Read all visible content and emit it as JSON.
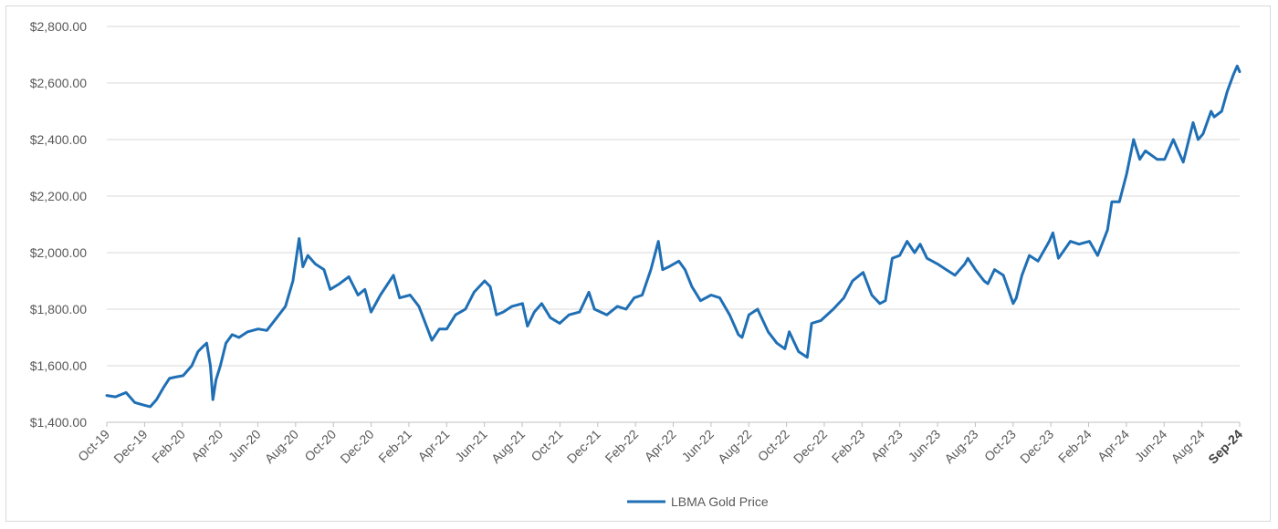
{
  "chart_data": {
    "type": "line",
    "title": "",
    "xlabel": "",
    "ylabel": "",
    "ylim": [
      1400,
      2800
    ],
    "y_ticks": [
      1400,
      1600,
      1800,
      2000,
      2200,
      2400,
      2600,
      2800
    ],
    "y_tick_labels": [
      "$1,400.00",
      "$1,600.00",
      "$1,800.00",
      "$2,000.00",
      "$2,200.00",
      "$2,400.00",
      "$2,600.00",
      "$2,800.00"
    ],
    "x_tick_labels": [
      "Oct-19",
      "Dec-19",
      "Feb-20",
      "Apr-20",
      "Jun-20",
      "Aug-20",
      "Oct-20",
      "Dec-20",
      "Feb-21",
      "Apr-21",
      "Jun-21",
      "Aug-21",
      "Oct-21",
      "Dec-21",
      "Feb-22",
      "Apr-22",
      "Jun-22",
      "Aug-22",
      "Oct-22",
      "Dec-22",
      "Feb-23",
      "Apr-23",
      "Jun-23",
      "Aug-23",
      "Oct-23",
      "Dec-23",
      "Feb-24",
      "Apr-24",
      "Jun-24",
      "Aug-24",
      "Sep-24"
    ],
    "grid": "horizontal",
    "legend_position": "bottom-center",
    "line_color": "#1f6fb5",
    "series": [
      {
        "name": "LBMA Gold Price",
        "x": [
          "2019-10-01",
          "2019-10-15",
          "2019-11-01",
          "2019-11-15",
          "2019-12-01",
          "2019-12-10",
          "2019-12-20",
          "2020-01-01",
          "2020-01-10",
          "2020-01-20",
          "2020-02-01",
          "2020-02-15",
          "2020-02-25",
          "2020-03-05",
          "2020-03-10",
          "2020-03-16",
          "2020-03-20",
          "2020-03-25",
          "2020-04-01",
          "2020-04-10",
          "2020-04-20",
          "2020-05-01",
          "2020-05-15",
          "2020-06-01",
          "2020-06-15",
          "2020-07-01",
          "2020-07-15",
          "2020-07-27",
          "2020-08-06",
          "2020-08-12",
          "2020-08-20",
          "2020-09-01",
          "2020-09-15",
          "2020-09-25",
          "2020-10-10",
          "2020-10-25",
          "2020-11-09",
          "2020-11-20",
          "2020-11-30",
          "2020-12-15",
          "2021-01-05",
          "2021-01-15",
          "2021-02-01",
          "2021-02-15",
          "2021-03-01",
          "2021-03-08",
          "2021-03-20",
          "2021-04-01",
          "2021-04-15",
          "2021-05-01",
          "2021-05-15",
          "2021-06-01",
          "2021-06-10",
          "2021-06-20",
          "2021-07-01",
          "2021-07-15",
          "2021-08-01",
          "2021-08-09",
          "2021-08-20",
          "2021-09-01",
          "2021-09-15",
          "2021-09-30",
          "2021-10-15",
          "2021-11-01",
          "2021-11-16",
          "2021-11-25",
          "2021-12-15",
          "2022-01-01",
          "2022-01-15",
          "2022-01-28",
          "2022-02-10",
          "2022-02-24",
          "2022-03-08",
          "2022-03-15",
          "2022-03-25",
          "2022-04-10",
          "2022-04-20",
          "2022-05-01",
          "2022-05-15",
          "2022-06-01",
          "2022-06-15",
          "2022-07-01",
          "2022-07-15",
          "2022-07-21",
          "2022-08-01",
          "2022-08-15",
          "2022-09-01",
          "2022-09-15",
          "2022-09-28",
          "2022-10-05",
          "2022-10-20",
          "2022-11-03",
          "2022-11-10",
          "2022-11-25",
          "2022-12-15",
          "2023-01-01",
          "2023-01-15",
          "2023-02-01",
          "2023-02-15",
          "2023-02-28",
          "2023-03-09",
          "2023-03-20",
          "2023-04-01",
          "2023-04-13",
          "2023-04-25",
          "2023-05-04",
          "2023-05-15",
          "2023-06-01",
          "2023-06-15",
          "2023-06-29",
          "2023-07-15",
          "2023-07-20",
          "2023-08-01",
          "2023-08-15",
          "2023-08-21",
          "2023-09-01",
          "2023-09-15",
          "2023-10-01",
          "2023-10-06",
          "2023-10-15",
          "2023-10-27",
          "2023-11-10",
          "2023-11-28",
          "2023-12-04",
          "2023-12-13",
          "2024-01-01",
          "2024-01-15",
          "2024-02-01",
          "2024-02-14",
          "2024-03-01",
          "2024-03-08",
          "2024-03-20",
          "2024-04-01",
          "2024-04-12",
          "2024-04-22",
          "2024-05-01",
          "2024-05-20",
          "2024-06-01",
          "2024-06-15",
          "2024-07-01",
          "2024-07-17",
          "2024-07-25",
          "2024-08-02",
          "2024-08-15",
          "2024-08-20",
          "2024-09-01",
          "2024-09-10",
          "2024-09-20",
          "2024-09-26",
          "2024-09-30"
        ],
        "y": [
          1495,
          1490,
          1505,
          1470,
          1460,
          1455,
          1480,
          1525,
          1555,
          1560,
          1565,
          1600,
          1650,
          1670,
          1680,
          1600,
          1480,
          1550,
          1600,
          1680,
          1710,
          1700,
          1720,
          1730,
          1725,
          1770,
          1810,
          1900,
          2050,
          1950,
          1990,
          1960,
          1940,
          1870,
          1890,
          1915,
          1850,
          1870,
          1790,
          1850,
          1920,
          1840,
          1850,
          1810,
          1730,
          1690,
          1730,
          1730,
          1780,
          1800,
          1860,
          1900,
          1880,
          1780,
          1790,
          1810,
          1820,
          1740,
          1790,
          1820,
          1770,
          1750,
          1780,
          1790,
          1860,
          1800,
          1780,
          1810,
          1800,
          1840,
          1850,
          1940,
          2040,
          1940,
          1950,
          1970,
          1940,
          1880,
          1830,
          1850,
          1840,
          1780,
          1710,
          1700,
          1780,
          1800,
          1720,
          1680,
          1660,
          1720,
          1650,
          1630,
          1750,
          1760,
          1800,
          1840,
          1900,
          1930,
          1850,
          1820,
          1830,
          1980,
          1990,
          2040,
          2000,
          2030,
          1980,
          1960,
          1940,
          1920,
          1960,
          1980,
          1940,
          1900,
          1890,
          1940,
          1920,
          1820,
          1840,
          1920,
          1990,
          1970,
          2040,
          2070,
          1980,
          2040,
          2030,
          2040,
          1990,
          2080,
          2180,
          2180,
          2280,
          2400,
          2330,
          2360,
          2330,
          2330,
          2400,
          2320,
          2460,
          2400,
          2420,
          2500,
          2480,
          2500,
          2570,
          2630,
          2660,
          2640
        ]
      }
    ]
  },
  "legend": {
    "label": "LBMA Gold Price"
  }
}
